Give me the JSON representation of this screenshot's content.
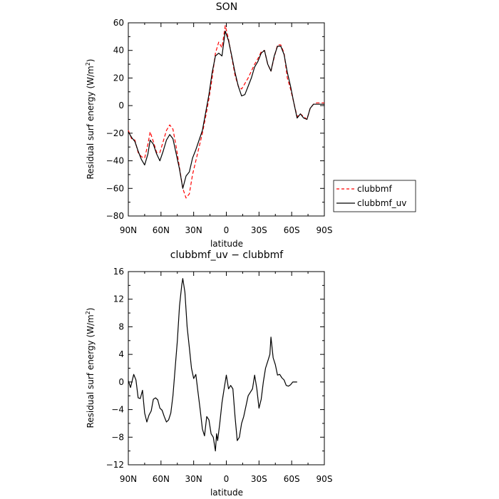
{
  "chart_data": [
    {
      "type": "line",
      "title": "SON",
      "xlabel": "latitude",
      "ylabel_main": "Residual surf energy (W/m",
      "ylabel_sup": "2",
      "ylabel_close": ")",
      "xlim": [
        90,
        -90
      ],
      "ylim": [
        -80,
        60
      ],
      "xticks": [
        90,
        60,
        30,
        0,
        -30,
        -60,
        -90
      ],
      "xtick_labels": [
        "90N",
        "60N",
        "30N",
        "0",
        "30S",
        "60S",
        "90S"
      ],
      "yticks": [
        -80,
        -60,
        -40,
        -20,
        0,
        20,
        40,
        60
      ],
      "ytick_labels": [
        "−80",
        "−60",
        "−40",
        "−20",
        "0",
        "20",
        "40",
        "60"
      ],
      "legend": "right",
      "series": [
        {
          "name": "clubbmf",
          "color": "#ff0000",
          "dash": "dashed",
          "points": [
            [
              90,
              -18
            ],
            [
              87,
              -24
            ],
            [
              84,
              -25
            ],
            [
              81,
              -34
            ],
            [
              78,
              -37
            ],
            [
              75,
              -38
            ],
            [
              72,
              -28
            ],
            [
              70,
              -19
            ],
            [
              67,
              -26
            ],
            [
              64,
              -34
            ],
            [
              61,
              -34
            ],
            [
              58,
              -26
            ],
            [
              55,
              -18
            ],
            [
              52,
              -14
            ],
            [
              49,
              -17
            ],
            [
              46,
              -30
            ],
            [
              43,
              -45
            ],
            [
              40,
              -60
            ],
            [
              37,
              -67
            ],
            [
              34,
              -64
            ],
            [
              31,
              -50
            ],
            [
              28,
              -40
            ],
            [
              25,
              -30
            ],
            [
              22,
              -20
            ],
            [
              19,
              -8
            ],
            [
              16,
              5
            ],
            [
              13,
              20
            ],
            [
              10,
              38
            ],
            [
              7,
              46
            ],
            [
              4,
              42
            ],
            [
              1,
              58
            ],
            [
              -2,
              48
            ],
            [
              -5,
              35
            ],
            [
              -8,
              22
            ],
            [
              -11,
              14
            ],
            [
              -14,
              12
            ],
            [
              -17,
              16
            ],
            [
              -20,
              20
            ],
            [
              -23,
              25
            ],
            [
              -26,
              30
            ],
            [
              -29,
              34
            ],
            [
              -32,
              39
            ],
            [
              -35,
              40
            ],
            [
              -38,
              30
            ],
            [
              -41,
              25
            ],
            [
              -44,
              35
            ],
            [
              -47,
              44
            ],
            [
              -50,
              44
            ],
            [
              -53,
              38
            ],
            [
              -56,
              20
            ],
            [
              -59,
              12
            ],
            [
              -62,
              2
            ],
            [
              -65,
              -8
            ],
            [
              -68,
              -6
            ],
            [
              -71,
              -8
            ],
            [
              -74,
              -10
            ],
            [
              -77,
              -2
            ],
            [
              -80,
              1
            ],
            [
              -83,
              2
            ],
            [
              -86,
              2
            ],
            [
              -90,
              2
            ]
          ]
        },
        {
          "name": "clubbmf_uv",
          "color": "#000000",
          "dash": "solid",
          "points": [
            [
              90,
              -19
            ],
            [
              87,
              -23
            ],
            [
              84,
              -26
            ],
            [
              81,
              -33
            ],
            [
              78,
              -39
            ],
            [
              75,
              -43
            ],
            [
              72,
              -35
            ],
            [
              70,
              -25
            ],
            [
              67,
              -28
            ],
            [
              64,
              -35
            ],
            [
              61,
              -40
            ],
            [
              58,
              -33
            ],
            [
              55,
              -25
            ],
            [
              52,
              -21
            ],
            [
              49,
              -24
            ],
            [
              46,
              -35
            ],
            [
              43,
              -46
            ],
            [
              40,
              -60
            ],
            [
              37,
              -51
            ],
            [
              34,
              -48
            ],
            [
              31,
              -38
            ],
            [
              28,
              -32
            ],
            [
              25,
              -25
            ],
            [
              22,
              -18
            ],
            [
              19,
              -5
            ],
            [
              16,
              8
            ],
            [
              13,
              24
            ],
            [
              10,
              36
            ],
            [
              7,
              38
            ],
            [
              4,
              36
            ],
            [
              1,
              54
            ],
            [
              -2,
              47
            ],
            [
              -5,
              36
            ],
            [
              -8,
              24
            ],
            [
              -11,
              14
            ],
            [
              -14,
              7
            ],
            [
              -17,
              8
            ],
            [
              -20,
              14
            ],
            [
              -23,
              20
            ],
            [
              -26,
              28
            ],
            [
              -29,
              32
            ],
            [
              -32,
              38
            ],
            [
              -35,
              40
            ],
            [
              -38,
              30
            ],
            [
              -41,
              25
            ],
            [
              -44,
              36
            ],
            [
              -47,
              43
            ],
            [
              -50,
              43
            ],
            [
              -53,
              37
            ],
            [
              -56,
              24
            ],
            [
              -59,
              14
            ],
            [
              -62,
              2
            ],
            [
              -65,
              -9
            ],
            [
              -68,
              -6
            ],
            [
              -71,
              -9
            ],
            [
              -74,
              -10
            ],
            [
              -77,
              -2
            ],
            [
              -80,
              1
            ],
            [
              -83,
              1
            ],
            [
              -86,
              1
            ],
            [
              -90,
              1
            ]
          ]
        }
      ]
    },
    {
      "type": "line",
      "title": "clubbmf_uv − clubbmf",
      "xlabel": "latitude",
      "ylabel_main": "Residual surf energy (W/m",
      "ylabel_sup": "2",
      "ylabel_close": ")",
      "xlim": [
        90,
        -90
      ],
      "ylim": [
        -12,
        16
      ],
      "xticks": [
        90,
        60,
        30,
        0,
        -30,
        -60,
        -90
      ],
      "xtick_labels": [
        "90N",
        "60N",
        "30N",
        "0",
        "30S",
        "60S",
        "90S"
      ],
      "yticks": [
        -12,
        -8,
        -4,
        0,
        4,
        8,
        12,
        16
      ],
      "ytick_labels": [
        "−12",
        "−8",
        "−4",
        "0",
        "4",
        "8",
        "12",
        "16"
      ],
      "series": [
        {
          "color": "#000000",
          "dash": "solid",
          "points": [
            [
              90,
              0.2
            ],
            [
              88,
              -0.8
            ],
            [
              85,
              1.1
            ],
            [
              83,
              0.3
            ],
            [
              81,
              -2.3
            ],
            [
              79,
              -2.4
            ],
            [
              77,
              -1.2
            ],
            [
              75,
              -4.5
            ],
            [
              73,
              -5.8
            ],
            [
              71,
              -4.8
            ],
            [
              69,
              -4.2
            ],
            [
              67,
              -2.5
            ],
            [
              65,
              -2.3
            ],
            [
              63,
              -2.6
            ],
            [
              61,
              -3.8
            ],
            [
              59,
              -4.1
            ],
            [
              57,
              -5.0
            ],
            [
              55,
              -5.8
            ],
            [
              53,
              -5.5
            ],
            [
              51,
              -4.5
            ],
            [
              49,
              -2.0
            ],
            [
              47,
              2.0
            ],
            [
              45,
              6.0
            ],
            [
              43,
              11.0
            ],
            [
              41,
              14.0
            ],
            [
              40,
              15.0
            ],
            [
              38,
              13.0
            ],
            [
              36,
              8.0
            ],
            [
              34,
              5.0
            ],
            [
              32,
              2.0
            ],
            [
              30,
              0.5
            ],
            [
              28,
              1.1
            ],
            [
              26,
              -1.5
            ],
            [
              24,
              -4.0
            ],
            [
              22,
              -6.8
            ],
            [
              20,
              -7.8
            ],
            [
              18,
              -5.0
            ],
            [
              16,
              -5.5
            ],
            [
              14,
              -7.5
            ],
            [
              12,
              -8.0
            ],
            [
              10,
              -10.0
            ],
            [
              9,
              -7.5
            ],
            [
              8,
              -8.5
            ],
            [
              6,
              -6.0
            ],
            [
              4,
              -3.0
            ],
            [
              2,
              -1.0
            ],
            [
              0,
              1.0
            ],
            [
              -2,
              -1.0
            ],
            [
              -4,
              -0.5
            ],
            [
              -6,
              -1.0
            ],
            [
              -8,
              -5.0
            ],
            [
              -10,
              -8.5
            ],
            [
              -12,
              -8.0
            ],
            [
              -14,
              -6.0
            ],
            [
              -16,
              -5.0
            ],
            [
              -18,
              -3.5
            ],
            [
              -20,
              -2.0
            ],
            [
              -22,
              -1.5
            ],
            [
              -24,
              -1.0
            ],
            [
              -26,
              1.0
            ],
            [
              -28,
              -1.0
            ],
            [
              -30,
              -3.8
            ],
            [
              -32,
              -2.5
            ],
            [
              -34,
              0.0
            ],
            [
              -36,
              2.0
            ],
            [
              -38,
              3.0
            ],
            [
              -40,
              4.0
            ],
            [
              -41,
              6.5
            ],
            [
              -43,
              3.5
            ],
            [
              -45,
              2.5
            ],
            [
              -47,
              1.0
            ],
            [
              -49,
              1.1
            ],
            [
              -51,
              0.6
            ],
            [
              -53,
              0.3
            ],
            [
              -55,
              -0.5
            ],
            [
              -57,
              -0.6
            ],
            [
              -59,
              -0.4
            ],
            [
              -61,
              0.0
            ],
            [
              -63,
              0.0
            ],
            [
              -65,
              0.0
            ]
          ]
        }
      ]
    }
  ]
}
